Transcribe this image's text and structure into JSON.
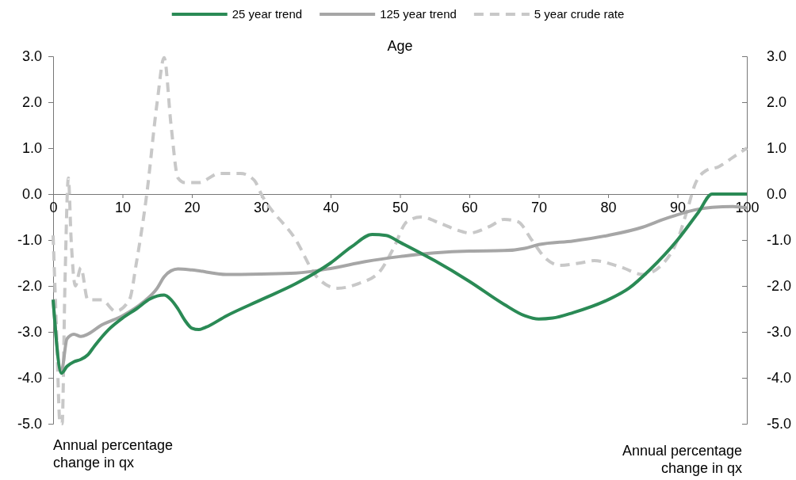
{
  "chart_data": {
    "type": "line",
    "xlabel": "Age",
    "annotations": [
      "Annual percentage change in qx",
      "Annual percentage change in qx"
    ],
    "xlim": [
      0,
      100
    ],
    "xticks": [
      0,
      10,
      20,
      30,
      40,
      50,
      60,
      70,
      80,
      90,
      100
    ],
    "ylim": [
      -5,
      3
    ],
    "yticks": [
      {
        "value": -5,
        "label": "-5.0"
      },
      {
        "value": -4,
        "label": "-4.0"
      },
      {
        "value": -3,
        "label": "-3.0"
      },
      {
        "value": -2,
        "label": "-2.0"
      },
      {
        "value": -1,
        "label": "-1.0"
      },
      {
        "value": 0,
        "label": "0.0"
      },
      {
        "value": 1,
        "label": "1.0"
      },
      {
        "value": 2,
        "label": "2.0"
      },
      {
        "value": 3,
        "label": "3.0"
      }
    ],
    "y2lim": [
      -5,
      3
    ],
    "y2ticks": [
      {
        "value": -5,
        "label": "-5.0"
      },
      {
        "value": -4,
        "label": "-4.0"
      },
      {
        "value": -3,
        "label": "-3.0"
      },
      {
        "value": -2,
        "label": "-2.0"
      },
      {
        "value": -1,
        "label": "-1.0"
      },
      {
        "value": 0,
        "label": "0.0"
      },
      {
        "value": 1,
        "label": "1.0"
      },
      {
        "value": 2,
        "label": "2.0"
      },
      {
        "value": 3,
        "label": "3.0"
      }
    ],
    "grid": false,
    "legend": "top",
    "marker": "none",
    "series": [
      {
        "name": "25 year trend",
        "color": "#2a8a55",
        "line_style": "solid",
        "x": [
          0,
          1.2,
          2,
          3,
          4,
          5,
          6,
          8,
          10,
          12,
          14,
          16,
          17,
          18,
          19,
          20,
          21,
          22,
          25,
          30,
          35,
          40,
          43,
          46,
          48,
          50,
          55,
          60,
          65,
          68,
          70,
          72,
          75,
          80,
          83,
          86,
          90,
          93,
          95,
          100
        ],
        "values": [
          -2.3,
          -3.9,
          -3.75,
          -3.65,
          -3.6,
          -3.5,
          -3.3,
          -2.95,
          -2.7,
          -2.5,
          -2.28,
          -2.2,
          -2.3,
          -2.5,
          -2.75,
          -2.92,
          -2.95,
          -2.9,
          -2.65,
          -2.3,
          -1.95,
          -1.5,
          -1.15,
          -0.88,
          -0.9,
          -1.05,
          -1.45,
          -1.9,
          -2.4,
          -2.65,
          -2.72,
          -2.7,
          -2.58,
          -2.3,
          -2.05,
          -1.65,
          -1,
          -0.4,
          0,
          0
        ]
      },
      {
        "name": "125 year trend",
        "color": "#a6a6a6",
        "line_style": "solid",
        "x": [
          0,
          1.2,
          2,
          3,
          4,
          5,
          7,
          10,
          13,
          15,
          16,
          17,
          18,
          20,
          25,
          30,
          35,
          40,
          45,
          50,
          55,
          60,
          65,
          68,
          70,
          75,
          80,
          85,
          88,
          90,
          93,
          95,
          98,
          100
        ],
        "values": [
          -2.3,
          -3.85,
          -3.15,
          -3.05,
          -3.1,
          -3.05,
          -2.85,
          -2.65,
          -2.35,
          -2.05,
          -1.8,
          -1.67,
          -1.63,
          -1.65,
          -1.75,
          -1.74,
          -1.72,
          -1.62,
          -1.47,
          -1.36,
          -1.28,
          -1.24,
          -1.23,
          -1.18,
          -1.1,
          -1.02,
          -0.9,
          -0.72,
          -0.55,
          -0.45,
          -0.33,
          -0.29,
          -0.27,
          -0.3
        ]
      },
      {
        "name": "5 year crude rate",
        "color": "#c8c8c8",
        "line_style": "dashed",
        "x": [
          0,
          0.5,
          1,
          1.3,
          1.7,
          2.2,
          2.6,
          3.2,
          4,
          5,
          7,
          9,
          11,
          12,
          13.5,
          15,
          16,
          17,
          18,
          19,
          21,
          24,
          27,
          29,
          30,
          35,
          38,
          41,
          44,
          47,
          49,
          51,
          53,
          56,
          59,
          60,
          63,
          65,
          67,
          69,
          71,
          73,
          76,
          78,
          82,
          85,
          88,
          90,
          91.5,
          92.5,
          94,
          96,
          98,
          100
        ],
        "values": [
          -0.9,
          -3,
          -5,
          -5,
          -2,
          0.35,
          -1,
          -2,
          -1.6,
          -2.3,
          -2.3,
          -2.55,
          -2.3,
          -1.5,
          0,
          2,
          2.97,
          1.5,
          0.35,
          0.25,
          0.25,
          0.45,
          0.45,
          0.3,
          0,
          -1,
          -1.8,
          -2.05,
          -1.95,
          -1.7,
          -1.2,
          -0.6,
          -0.5,
          -0.65,
          -0.82,
          -0.85,
          -0.7,
          -0.55,
          -0.6,
          -1,
          -1.4,
          -1.55,
          -1.5,
          -1.45,
          -1.6,
          -1.75,
          -1.5,
          -1,
          -0.3,
          0.2,
          0.5,
          0.6,
          0.8,
          1
        ]
      }
    ]
  }
}
